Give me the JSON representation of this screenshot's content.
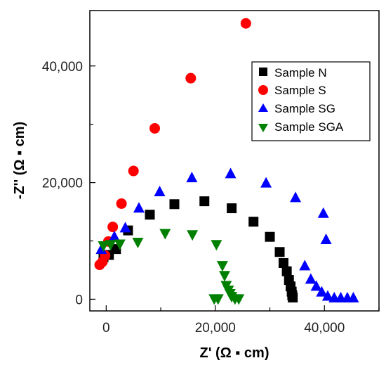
{
  "chart_data": {
    "type": "scatter",
    "xlabel": "Z' (Ω ▪ cm)",
    "ylabel": "-Z'' (Ω ▪ cm)",
    "xlim": [
      -3000,
      50000
    ],
    "ylim": [
      -2000,
      49500
    ],
    "xticks": [
      0,
      20000,
      40000
    ],
    "xtick_labels": [
      "0",
      "20,000",
      "40,000"
    ],
    "yticks": [
      0,
      20000,
      40000
    ],
    "ytick_labels": [
      "0",
      "20,000",
      "40,000"
    ],
    "legend_placement": "top-right",
    "series": [
      {
        "name": "Sample N",
        "marker": "square",
        "color": "#000000",
        "x": [
          -500,
          500,
          1800,
          4000,
          8000,
          12500,
          18000,
          23000,
          27000,
          30000,
          31800,
          32500,
          33100,
          33500,
          33800,
          34000,
          34100,
          34200
        ],
        "y": [
          7200,
          7600,
          8600,
          11800,
          14500,
          16300,
          16800,
          15600,
          13300,
          10700,
          8100,
          6200,
          4800,
          3300,
          2200,
          1300,
          700,
          300
        ]
      },
      {
        "name": "Sample S",
        "marker": "circle",
        "color": "#ff0000",
        "x": [
          -1200,
          -700,
          -200,
          400,
          1200,
          2800,
          5000,
          8900,
          15500,
          25600
        ],
        "y": [
          5900,
          6400,
          7500,
          9900,
          12400,
          16400,
          22000,
          29300,
          37900,
          47300
        ]
      },
      {
        "name": "Sample SG",
        "marker": "triangle-up",
        "color": "#0000ff",
        "x": [
          -900,
          1500,
          3500,
          6000,
          9800,
          15700,
          22800,
          29300,
          34700,
          36400,
          37500,
          38500,
          39500,
          40600,
          41800,
          43000,
          44200,
          45300,
          39800,
          40300
        ],
        "y": [
          8600,
          10800,
          12300,
          15700,
          18500,
          20900,
          21600,
          20000,
          17500,
          5800,
          3500,
          2300,
          1300,
          600,
          300,
          300,
          300,
          300,
          14800,
          10300
        ]
      },
      {
        "name": "Sample SGA",
        "marker": "triangle-down",
        "color": "#008000",
        "x": [
          -500,
          800,
          2500,
          5800,
          10800,
          15800,
          20200,
          21300,
          21700,
          22000,
          22400,
          22700,
          23000,
          23600,
          24300,
          20500,
          19800
        ],
        "y": [
          9100,
          9300,
          9400,
          9700,
          11200,
          11000,
          9300,
          5700,
          4000,
          2300,
          1500,
          900,
          400,
          0,
          0,
          0,
          0
        ]
      }
    ]
  }
}
